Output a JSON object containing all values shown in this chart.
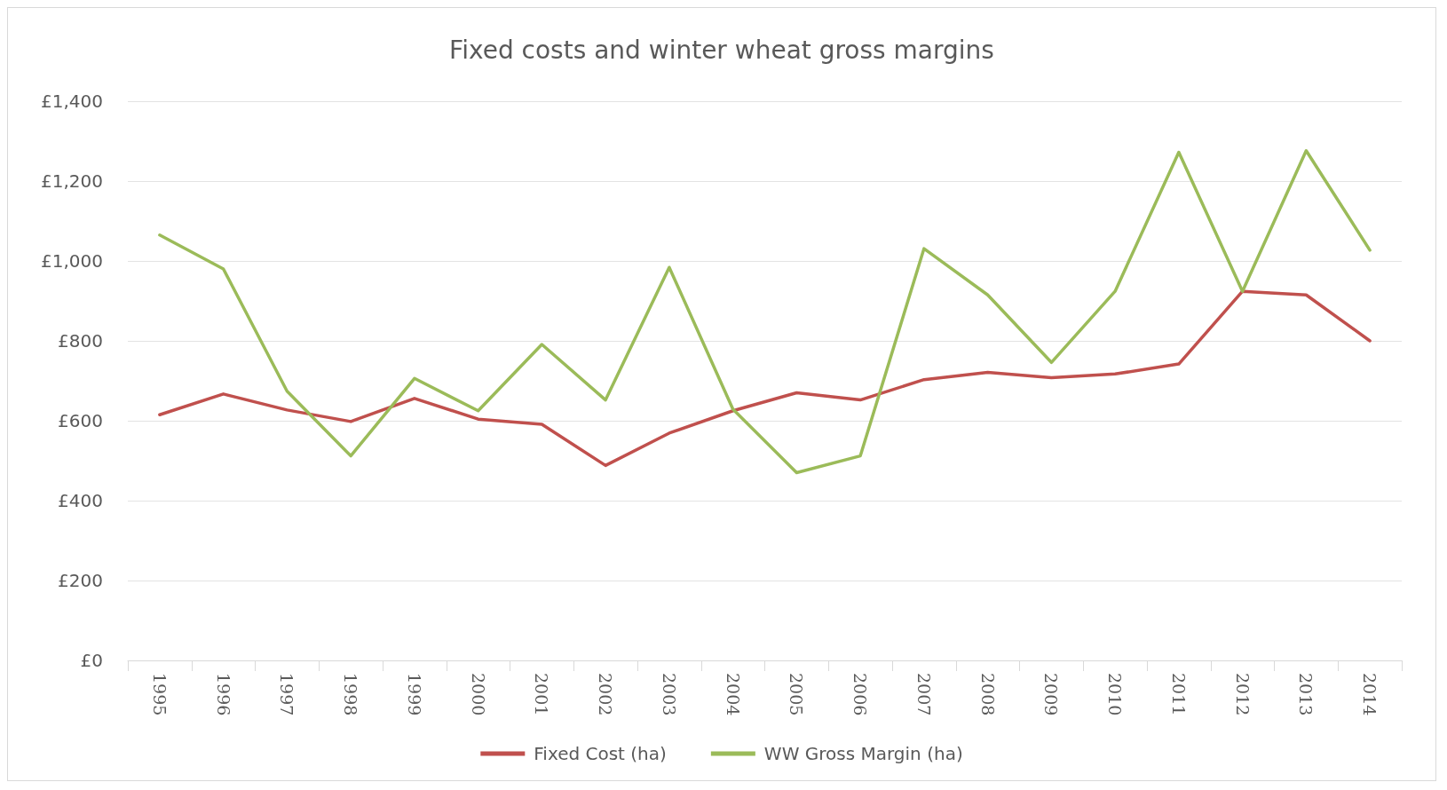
{
  "chart_data": {
    "type": "line",
    "title": "Fixed costs and winter wheat gross margins",
    "categories": [
      "1995",
      "1996",
      "1997",
      "1998",
      "1999",
      "2000",
      "2001",
      "2002",
      "2003",
      "2004",
      "2005",
      "2006",
      "2007",
      "2008",
      "2009",
      "2010",
      "2011",
      "2012",
      "2013",
      "2014"
    ],
    "series": [
      {
        "name": "Fixed Cost (ha)",
        "color": "#c0504d",
        "values": [
          615,
          667,
          627,
          598,
          656,
          604,
          591,
          488,
          569,
          625,
          670,
          652,
          703,
          721,
          708,
          717,
          742,
          924,
          915,
          800
        ]
      },
      {
        "name": "WW Gross Margin (ha)",
        "color": "#9bbb59",
        "values": [
          1065,
          980,
          674,
          512,
          706,
          625,
          791,
          652,
          984,
          629,
          470,
          512,
          1031,
          915,
          746,
          924,
          1272,
          924,
          1276,
          1027
        ]
      }
    ],
    "ylim": [
      0,
      1400
    ],
    "yticks": [
      {
        "value": 0,
        "label": "£0"
      },
      {
        "value": 200,
        "label": "£200"
      },
      {
        "value": 400,
        "label": "£400"
      },
      {
        "value": 600,
        "label": "£600"
      },
      {
        "value": 800,
        "label": "£800"
      },
      {
        "value": 1000,
        "label": "£1,000"
      },
      {
        "value": 1200,
        "label": "£1,200"
      },
      {
        "value": 1400,
        "label": "£1,400"
      }
    ],
    "grid": "y",
    "legend": "bottom",
    "marker": "none",
    "line_style": "solid"
  }
}
